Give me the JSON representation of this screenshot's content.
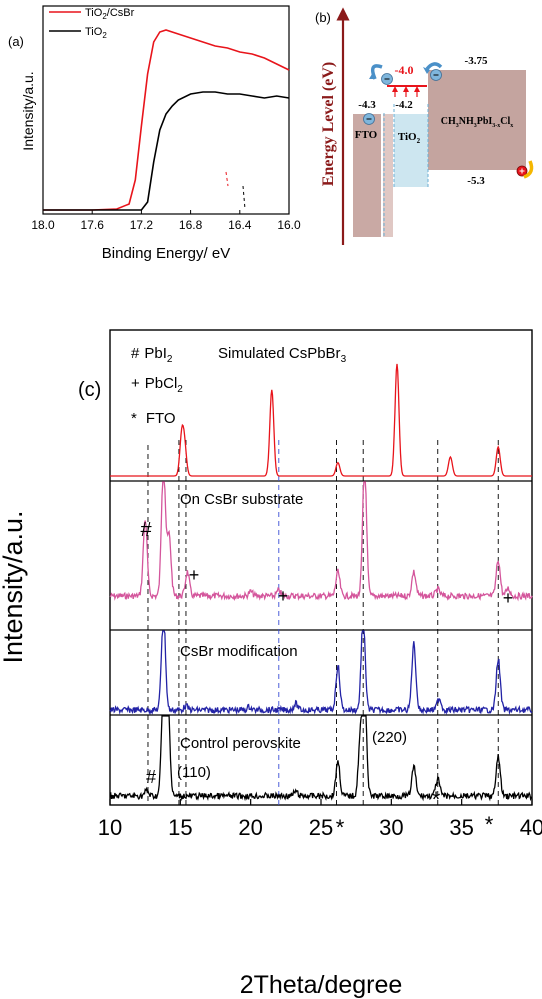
{
  "panel_a": {
    "label": "(a)",
    "ylabel": "Intensity/a.u.",
    "xlabel": "Binding Energy/ eV",
    "xticks": [
      "18.0",
      "17.6",
      "17.2",
      "16.8",
      "16.4",
      "16.0"
    ],
    "legend": [
      {
        "name_main": "TiO",
        "name_sub": "2",
        "name_tail": "/CsBr",
        "color": "#e8141b"
      },
      {
        "name_main": "TiO",
        "name_sub": "2",
        "name_tail": "",
        "color": "#000000"
      }
    ]
  },
  "panel_b": {
    "label": "(b)",
    "ylabel": "Energy Level (eV)",
    "fto_label": "FTO",
    "tio2_main": "TiO",
    "tio2_sub": "2",
    "perov_main": "CH",
    "perov_s1": "3",
    "perov_m2": "NH",
    "perov_s2": "3",
    "perov_m3": "PbI",
    "perov_s3": "3-x",
    "perov_m4": "Cl",
    "perov_s4": "x",
    "levels": {
      "fto": "-4.3",
      "tio2": "-4.2",
      "modified": "-4.0",
      "perov_cb": "-3.75",
      "perov_vb": "-5.3"
    },
    "colors": {
      "axis": "#8b1a1a",
      "modified": "#e8141b",
      "fto": "#c9a9a4",
      "tio2": "#cde6f0",
      "perov": "#c4a49f"
    }
  },
  "panel_c": {
    "label": "(c)",
    "ylabel": "Intensity/a.u.",
    "xlabel": "2Theta/degree",
    "xticks": [
      "10",
      "15",
      "20",
      "25",
      "30",
      "35",
      "40"
    ],
    "legend_lines": [
      {
        "sym": "#",
        "main": "PbI",
        "sub": "2"
      },
      {
        "sym": "+",
        "main": "PbCl",
        "sub": "2"
      },
      {
        "sym": "*",
        "main": "FTO",
        "sub": ""
      }
    ],
    "panel_titles": {
      "simulated_main": "Simulated CsPbBr",
      "simulated_sub": "3",
      "on_csbr": "On CsBr substrate",
      "csbr_mod": "CsBr modification",
      "control": "Control perovskite"
    },
    "peak_labels": {
      "p110": "(110)",
      "p220": "(220)"
    },
    "markers": {
      "hash": "#",
      "plus": "+",
      "star": "*"
    }
  },
  "chart_data": [
    {
      "type": "line",
      "title": "",
      "xlabel": "Binding Energy/ eV",
      "ylabel": "Intensity/a.u.",
      "xlim": [
        18.0,
        16.0
      ],
      "x_reversed": true,
      "series": [
        {
          "name": "TiO2/CsBr",
          "color": "#e8141b",
          "x": [
            18.0,
            17.6,
            17.4,
            17.3,
            17.25,
            17.2,
            17.15,
            17.1,
            17.05,
            17.0,
            16.9,
            16.8,
            16.7,
            16.6,
            16.5,
            16.4,
            16.3,
            16.2,
            16.1,
            16.0
          ],
          "y": [
            0.0,
            0.0,
            0.005,
            0.03,
            0.15,
            0.42,
            0.68,
            0.84,
            0.89,
            0.9,
            0.88,
            0.86,
            0.84,
            0.82,
            0.81,
            0.79,
            0.78,
            0.76,
            0.73,
            0.7
          ]
        },
        {
          "name": "TiO2",
          "color": "#000000",
          "x": [
            18.0,
            17.4,
            17.2,
            17.15,
            17.1,
            17.05,
            17.0,
            16.95,
            16.9,
            16.8,
            16.7,
            16.6,
            16.5,
            16.4,
            16.3,
            16.2,
            16.1,
            16.0
          ],
          "y": [
            0.0,
            0.0,
            0.0,
            0.04,
            0.24,
            0.4,
            0.48,
            0.52,
            0.55,
            0.58,
            0.59,
            0.59,
            0.58,
            0.58,
            0.57,
            0.56,
            0.57,
            0.56
          ]
        }
      ]
    },
    {
      "type": "line",
      "title": "",
      "xlabel": "2Theta/degree",
      "ylabel": "Intensity/a.u.",
      "xlim": [
        10,
        40
      ],
      "dashed_reference_lines": [
        12.7,
        14.9,
        15.4,
        22.0,
        26.1,
        28.0,
        33.3,
        37.6
      ],
      "series": [
        {
          "name": "Simulated CsPbBr3",
          "color": "#e8141b",
          "peaks": [
            [
              15.1,
              0.34
            ],
            [
              15.3,
              0.24
            ],
            [
              21.5,
              0.77
            ],
            [
              26.2,
              0.12
            ],
            [
              30.4,
              1.0
            ],
            [
              34.2,
              0.17
            ],
            [
              37.6,
              0.26
            ]
          ]
        },
        {
          "name": "On CsBr substrate",
          "color": "#d4569c",
          "peaks": [
            [
              12.5,
              0.7
            ],
            [
              13.8,
              1.2
            ],
            [
              14.2,
              0.55
            ],
            [
              15.5,
              0.22
            ],
            [
              20.0,
              0.04
            ],
            [
              22.0,
              0.05
            ],
            [
              26.2,
              0.22
            ],
            [
              28.1,
              1.2
            ],
            [
              31.6,
              0.22
            ],
            [
              33.3,
              0.06
            ],
            [
              37.6,
              0.33
            ],
            [
              38.3,
              0.07
            ]
          ]
        },
        {
          "name": "CsBr modification",
          "color": "#2323a6",
          "peaks": [
            [
              13.8,
              1.2
            ],
            [
              15.4,
              0.05
            ],
            [
              19.9,
              0.04
            ],
            [
              23.2,
              0.08
            ],
            [
              26.2,
              0.55
            ],
            [
              28.0,
              1.2
            ],
            [
              31.6,
              0.83
            ],
            [
              33.4,
              0.15
            ],
            [
              37.6,
              0.64
            ]
          ]
        },
        {
          "name": "Control perovskite",
          "color": "#000000",
          "peaks": [
            [
              12.6,
              0.06
            ],
            [
              13.8,
              1.2
            ],
            [
              14.1,
              1.2
            ],
            [
              23.2,
              0.05
            ],
            [
              26.2,
              0.4
            ],
            [
              27.8,
              0.68
            ],
            [
              28.1,
              1.2
            ],
            [
              31.6,
              0.33
            ],
            [
              33.3,
              0.19
            ],
            [
              37.6,
              0.45
            ]
          ]
        }
      ]
    }
  ]
}
